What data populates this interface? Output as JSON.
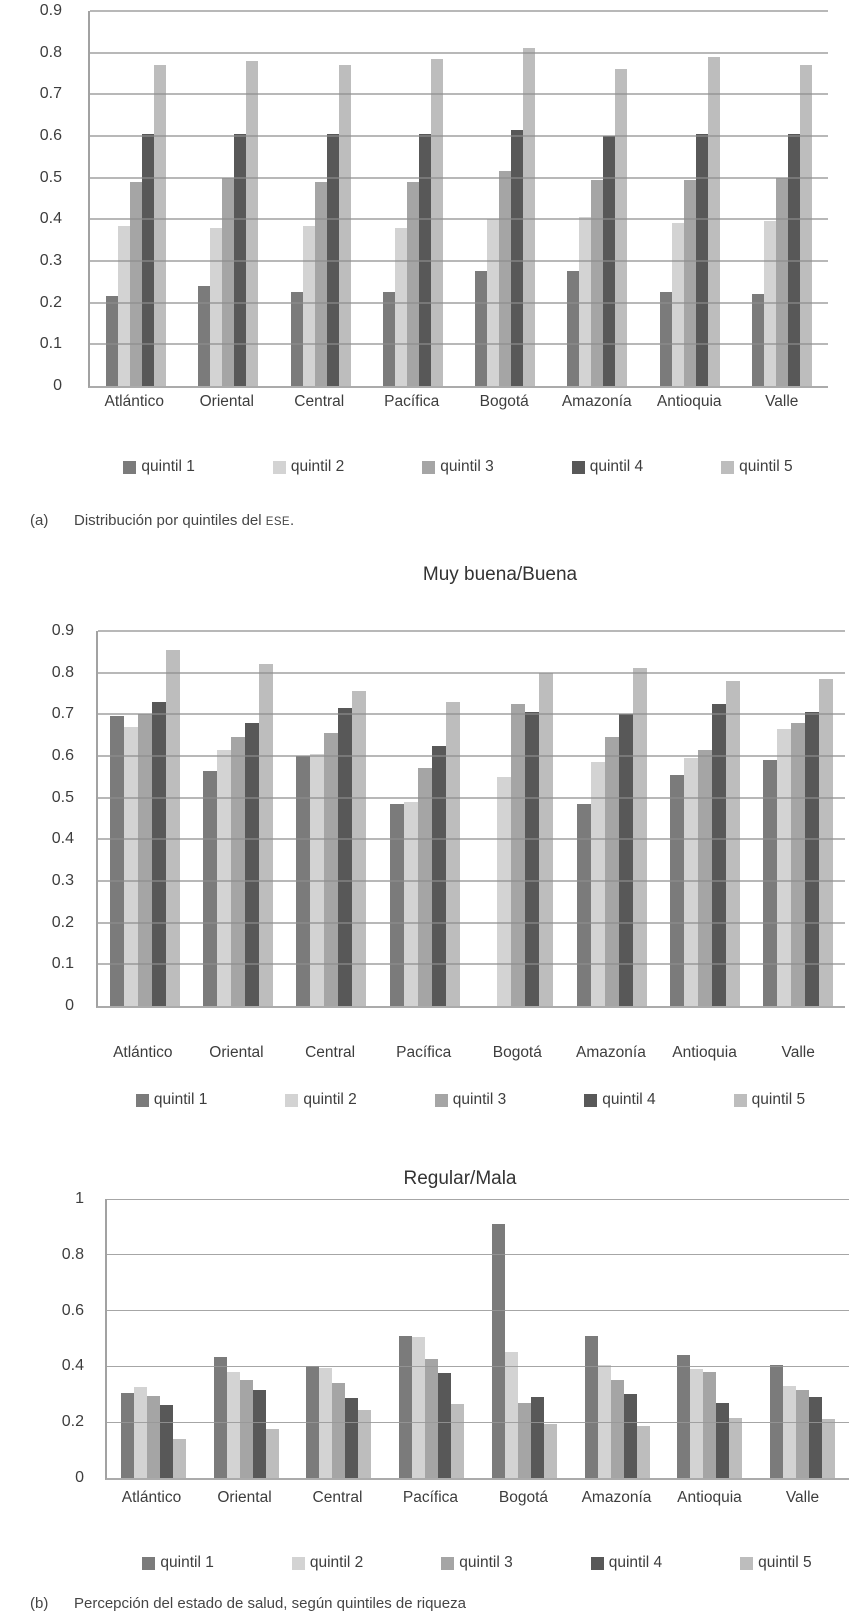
{
  "figure": {
    "background": "#ffffff",
    "text_color": "#3d3d3d",
    "gridline_color": "#a8a8a8",
    "axis_color": "#a2a2a2"
  },
  "captions": {
    "a": {
      "label": "(a)",
      "text_before": "Distribución por quintiles del ",
      "smallcaps": "ESE",
      "text_after": "."
    },
    "b": {
      "label": "(b)",
      "text": "Percepción del estado de salud, según quintiles de riqueza"
    }
  },
  "chart_data": [
    {
      "type": "bar",
      "title": "",
      "categories": [
        "Atlántico",
        "Oriental",
        "Central",
        "Pacífica",
        "Bogotá",
        "Amazonía",
        "Antioquia",
        "Valle"
      ],
      "series": [
        {
          "name": "quintil 1",
          "color": "#7b7b7b",
          "values": [
            0.215,
            0.24,
            0.225,
            0.225,
            0.275,
            0.275,
            0.225,
            0.22
          ]
        },
        {
          "name": "quintil 2",
          "color": "#d3d3d3",
          "values": [
            0.385,
            0.38,
            0.385,
            0.38,
            0.4,
            0.405,
            0.39,
            0.395
          ]
        },
        {
          "name": "quintil 3",
          "color": "#a5a5a5",
          "values": [
            0.49,
            0.5,
            0.49,
            0.49,
            0.515,
            0.495,
            0.495,
            0.5
          ]
        },
        {
          "name": "quintil 4",
          "color": "#585858",
          "values": [
            0.605,
            0.605,
            0.605,
            0.605,
            0.615,
            0.6,
            0.605,
            0.605
          ]
        },
        {
          "name": "quintil 5",
          "color": "#bdbdbd",
          "values": [
            0.77,
            0.78,
            0.77,
            0.785,
            0.81,
            0.76,
            0.79,
            0.77
          ]
        }
      ],
      "ylim": [
        0,
        0.9
      ],
      "yticks": [
        {
          "v": 0.9,
          "label": "0.9"
        },
        {
          "v": 0.8,
          "label": "0.8"
        },
        {
          "v": 0.7,
          "label": "0.7"
        },
        {
          "v": 0.6,
          "label": "0.6"
        },
        {
          "v": 0.5,
          "label": "0.5"
        },
        {
          "v": 0.4,
          "label": "0.4"
        },
        {
          "v": 0.3,
          "label": "0.3"
        },
        {
          "v": 0.2,
          "label": "0.2"
        },
        {
          "v": 0.1,
          "label": "0.1"
        },
        {
          "v": 0,
          "label": "0"
        }
      ],
      "grid": true,
      "legend_position": "bottom"
    },
    {
      "type": "bar",
      "title": "Muy buena/Buena",
      "categories": [
        "Atlántico",
        "Oriental",
        "Central",
        "Pacífica",
        "Bogotá",
        "Amazonía",
        "Antioquia",
        "Valle"
      ],
      "series": [
        {
          "name": "quintil 1",
          "color": "#7b7b7b",
          "values": [
            0.695,
            0.565,
            0.6,
            0.485,
            0,
            0.485,
            0.555,
            0.59
          ]
        },
        {
          "name": "quintil 2",
          "color": "#d3d3d3",
          "values": [
            0.67,
            0.615,
            0.605,
            0.49,
            0.55,
            0.585,
            0.595,
            0.665
          ]
        },
        {
          "name": "quintil 3",
          "color": "#a5a5a5",
          "values": [
            0.7,
            0.645,
            0.655,
            0.57,
            0.725,
            0.645,
            0.615,
            0.68
          ]
        },
        {
          "name": "quintil 4",
          "color": "#585858",
          "values": [
            0.73,
            0.68,
            0.715,
            0.625,
            0.705,
            0.7,
            0.725,
            0.705
          ]
        },
        {
          "name": "quintil 5",
          "color": "#bdbdbd",
          "values": [
            0.855,
            0.82,
            0.755,
            0.73,
            0.8,
            0.81,
            0.78,
            0.785
          ]
        }
      ],
      "ylim": [
        0,
        0.9
      ],
      "yticks": [
        {
          "v": 0.9,
          "label": "0.9"
        },
        {
          "v": 0.8,
          "label": "0.8"
        },
        {
          "v": 0.7,
          "label": "0.7"
        },
        {
          "v": 0.6,
          "label": "0.6"
        },
        {
          "v": 0.5,
          "label": "0.5"
        },
        {
          "v": 0.4,
          "label": "0.4"
        },
        {
          "v": 0.3,
          "label": "0.3"
        },
        {
          "v": 0.2,
          "label": "0.2"
        },
        {
          "v": 0.1,
          "label": "0.1"
        },
        {
          "v": 0,
          "label": "0"
        }
      ],
      "grid": true,
      "legend_position": "bottom"
    },
    {
      "type": "bar",
      "title": "Regular/Mala",
      "categories": [
        "Atlántico",
        "Oriental",
        "Central",
        "Pacífica",
        "Bogotá",
        "Amazonía",
        "Antioquia",
        "Valle"
      ],
      "series": [
        {
          "name": "quintil 1",
          "color": "#7b7b7b",
          "values": [
            0.305,
            0.435,
            0.4,
            0.51,
            0.91,
            0.51,
            0.44,
            0.405
          ]
        },
        {
          "name": "quintil 2",
          "color": "#d3d3d3",
          "values": [
            0.325,
            0.38,
            0.395,
            0.505,
            0.45,
            0.405,
            0.39,
            0.33
          ]
        },
        {
          "name": "quintil 3",
          "color": "#a5a5a5",
          "values": [
            0.295,
            0.35,
            0.34,
            0.425,
            0.27,
            0.35,
            0.38,
            0.315
          ]
        },
        {
          "name": "quintil 4",
          "color": "#585858",
          "values": [
            0.26,
            0.315,
            0.285,
            0.375,
            0.29,
            0.3,
            0.27,
            0.29
          ]
        },
        {
          "name": "quintil 5",
          "color": "#bdbdbd",
          "values": [
            0.14,
            0.175,
            0.245,
            0.265,
            0.195,
            0.185,
            0.215,
            0.21
          ]
        }
      ],
      "ylim": [
        0,
        1
      ],
      "yticks": [
        {
          "v": 1,
          "label": "1"
        },
        {
          "v": 0.8,
          "label": "0.8"
        },
        {
          "v": 0.6,
          "label": "0.6"
        },
        {
          "v": 0.4,
          "label": "0.4"
        },
        {
          "v": 0.2,
          "label": "0.2"
        },
        {
          "v": 0,
          "label": "0"
        }
      ],
      "grid": true,
      "legend_position": "bottom"
    }
  ]
}
